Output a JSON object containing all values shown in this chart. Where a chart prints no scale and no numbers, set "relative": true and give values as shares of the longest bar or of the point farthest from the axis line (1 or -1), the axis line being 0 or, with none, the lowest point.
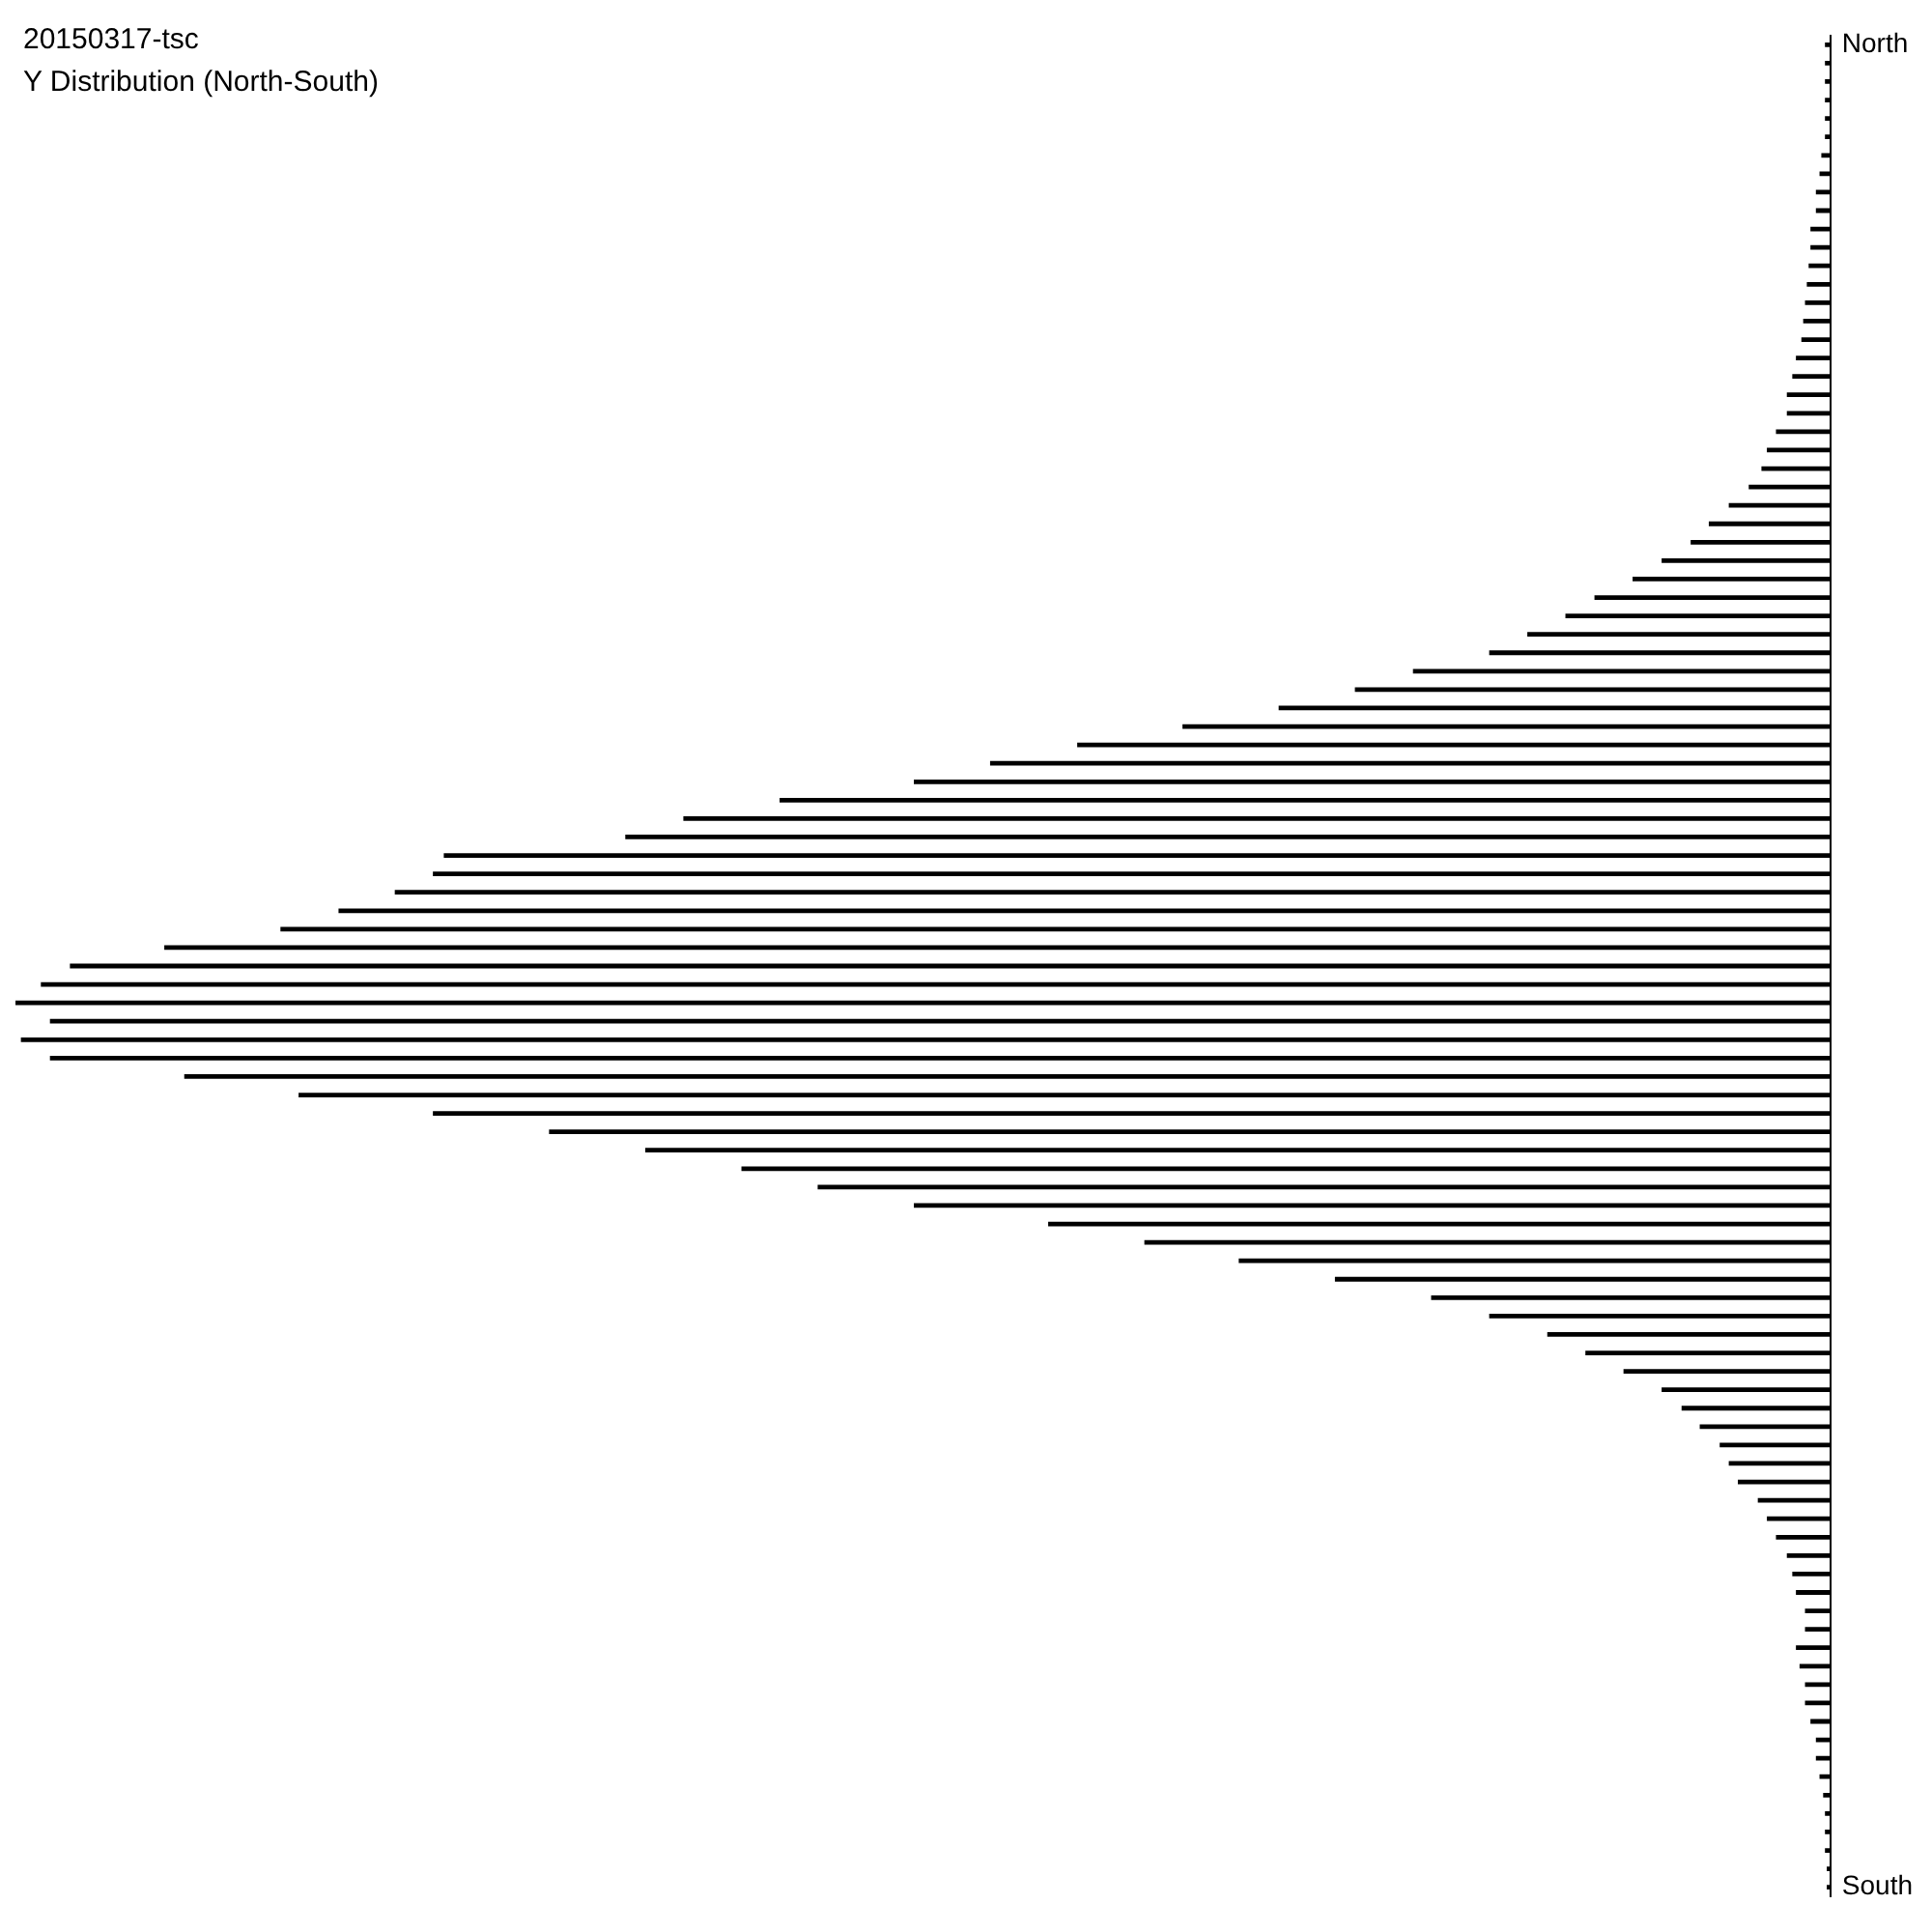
{
  "chart_data": {
    "type": "bar",
    "orientation": "horizontal",
    "relative": true,
    "title": "20150317-tsc",
    "subtitle": "Y Distribution (North-South)",
    "color": "#000000",
    "grid": false,
    "legend": false,
    "categories": [
      "North",
      null,
      null,
      null,
      null,
      null,
      null,
      null,
      null,
      null,
      null,
      null,
      null,
      null,
      null,
      null,
      null,
      null,
      null,
      null,
      null,
      null,
      null,
      null,
      null,
      null,
      null,
      null,
      null,
      null,
      null,
      null,
      null,
      null,
      null,
      null,
      null,
      null,
      null,
      null,
      null,
      null,
      null,
      null,
      null,
      null,
      null,
      null,
      null,
      null,
      null,
      null,
      null,
      null,
      null,
      null,
      null,
      null,
      null,
      null,
      null,
      null,
      null,
      null,
      null,
      null,
      null,
      null,
      null,
      null,
      null,
      null,
      null,
      null,
      null,
      null,
      null,
      null,
      null,
      null,
      null,
      null,
      null,
      null,
      null,
      null,
      null,
      null,
      null,
      null,
      null,
      null,
      null,
      null,
      null,
      null,
      null,
      null,
      null,
      null,
      "South"
    ],
    "values": [
      0.003,
      0.003,
      0.003,
      0.003,
      0.003,
      0.003,
      0.005,
      0.006,
      0.008,
      0.008,
      0.011,
      0.011,
      0.012,
      0.013,
      0.014,
      0.015,
      0.016,
      0.019,
      0.021,
      0.024,
      0.024,
      0.03,
      0.035,
      0.038,
      0.045,
      0.056,
      0.067,
      0.077,
      0.093,
      0.109,
      0.13,
      0.146,
      0.167,
      0.188,
      0.23,
      0.262,
      0.304,
      0.357,
      0.415,
      0.463,
      0.505,
      0.579,
      0.632,
      0.664,
      0.764,
      0.77,
      0.791,
      0.822,
      0.854,
      0.918,
      0.97,
      0.986,
      1,
      0.981,
      0.997,
      0.981,
      0.907,
      0.844,
      0.77,
      0.706,
      0.653,
      0.6,
      0.558,
      0.505,
      0.431,
      0.378,
      0.326,
      0.273,
      0.22,
      0.188,
      0.156,
      0.135,
      0.114,
      0.093,
      0.082,
      0.072,
      0.061,
      0.056,
      0.051,
      0.04,
      0.035,
      0.03,
      0.024,
      0.021,
      0.019,
      0.014,
      0.014,
      0.019,
      0.017,
      0.014,
      0.014,
      0.011,
      0.008,
      0.008,
      0.006,
      0.004,
      0.003,
      0.003,
      0.003,
      0.002,
      0.002
    ]
  }
}
